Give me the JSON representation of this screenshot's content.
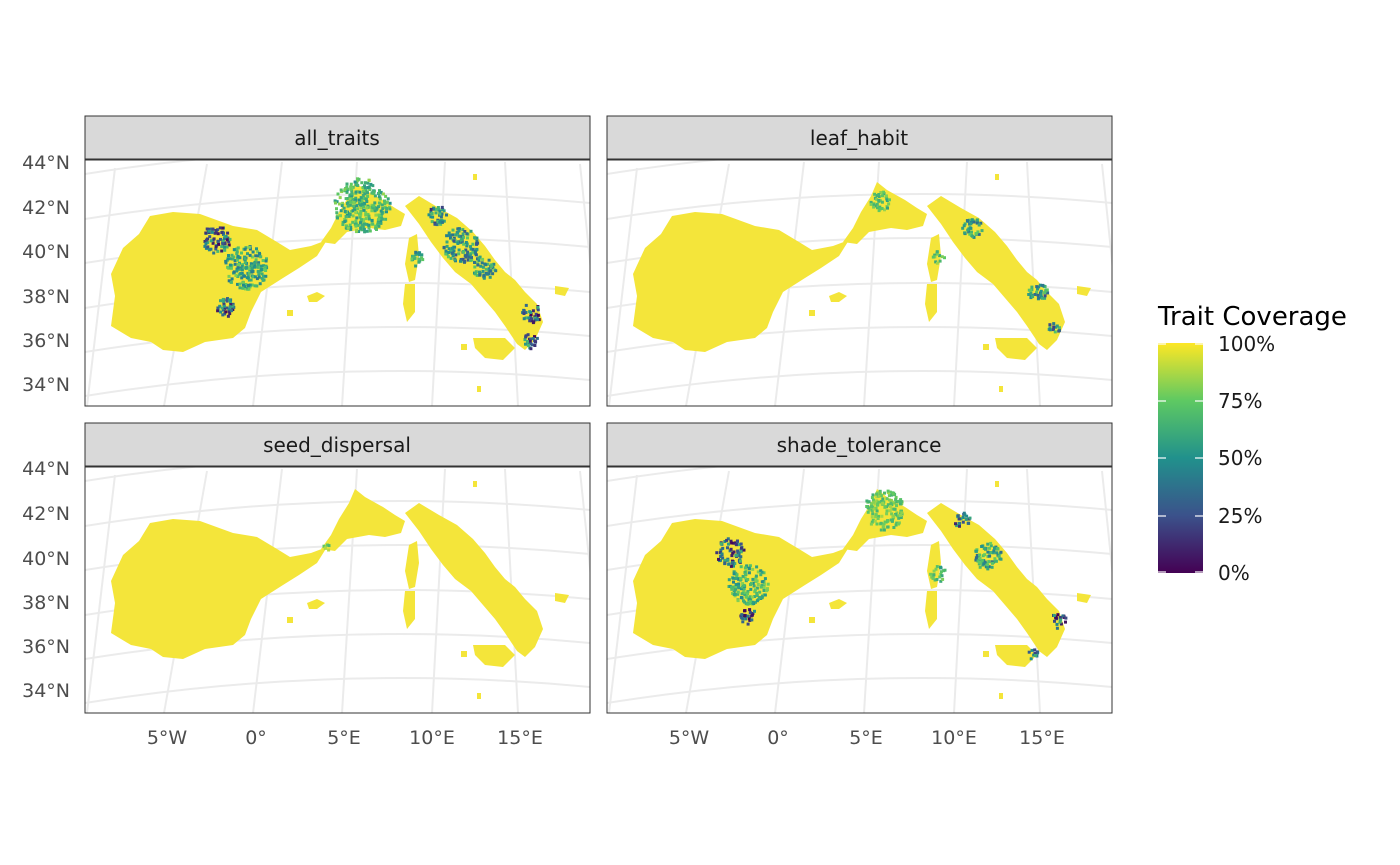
{
  "panels": [
    {
      "title": "all_traits",
      "coverage_profile": "mixed"
    },
    {
      "title": "leaf_habit",
      "coverage_profile": "high"
    },
    {
      "title": "seed_dispersal",
      "coverage_profile": "very-high"
    },
    {
      "title": "shade_tolerance",
      "coverage_profile": "mixed"
    }
  ],
  "y_axis_labels": [
    "44°N",
    "42°N",
    "40°N",
    "38°N",
    "36°N",
    "34°N"
  ],
  "x_axis_labels": [
    "5°W",
    "0°",
    "5°E",
    "10°E",
    "15°E"
  ],
  "legend": {
    "title": "Trait Coverage",
    "labels": [
      "100%",
      "75%",
      "50%",
      "25%",
      "0%"
    ],
    "colormap": "viridis",
    "colors": [
      "#440154",
      "#3b528b",
      "#21918c",
      "#5ec962",
      "#fde725"
    ]
  },
  "colors": {
    "panel_border": "#333333",
    "strip_fill": "#d9d9d9",
    "graticule": "#ebebeb",
    "axis_text": "#4d4d4d",
    "strip_text": "#1a1a1a"
  }
}
